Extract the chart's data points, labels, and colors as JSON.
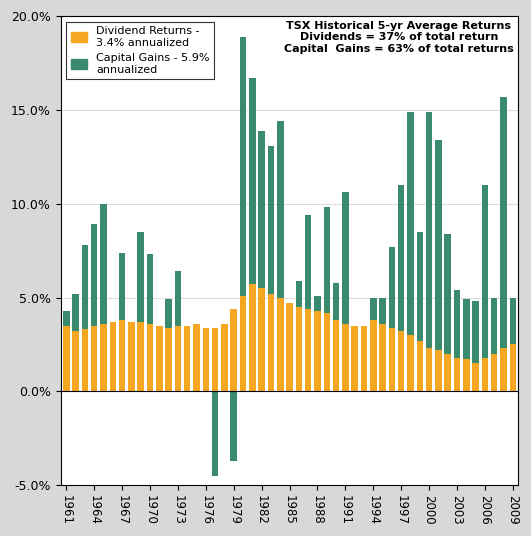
{
  "title": "TSX Historical 5-yr Average Returns\nDividends = 37% of total return\nCapital  Gains = 63% of total returns",
  "legend_dividend": "Dividend Returns -\n3.4% annualized",
  "legend_capital": "Capital Gains - 5.9%\nannualized",
  "years": [
    1961,
    1962,
    1963,
    1964,
    1965,
    1966,
    1967,
    1968,
    1969,
    1970,
    1971,
    1972,
    1973,
    1974,
    1975,
    1976,
    1977,
    1978,
    1979,
    1980,
    1981,
    1982,
    1983,
    1984,
    1985,
    1986,
    1987,
    1988,
    1989,
    1990,
    1991,
    1992,
    1993,
    1994,
    1995,
    1996,
    1997,
    1998,
    1999,
    2000,
    2001,
    2002,
    2003,
    2004,
    2005,
    2006,
    2007,
    2008,
    2009
  ],
  "dividend_returns": [
    3.5,
    3.2,
    3.3,
    3.5,
    3.6,
    3.7,
    3.8,
    3.7,
    3.7,
    3.6,
    3.5,
    3.4,
    3.5,
    3.5,
    3.6,
    3.4,
    3.4,
    3.6,
    4.4,
    5.1,
    5.7,
    5.5,
    5.2,
    5.0,
    4.7,
    4.5,
    4.4,
    4.3,
    4.2,
    3.8,
    3.6,
    3.5,
    3.5,
    3.8,
    3.6,
    3.4,
    3.2,
    3.0,
    2.7,
    2.3,
    2.2,
    2.0,
    1.8,
    1.7,
    1.5,
    1.8,
    2.0,
    2.3,
    2.5
  ],
  "capital_gains": [
    4.3,
    5.2,
    7.8,
    8.9,
    10.0,
    2.6,
    7.4,
    2.5,
    8.5,
    7.3,
    2.3,
    4.9,
    6.4,
    1.5,
    2.2,
    0.1,
    -4.5,
    2.0,
    -3.7,
    18.9,
    16.7,
    13.9,
    13.1,
    14.4,
    4.6,
    5.9,
    9.4,
    5.1,
    9.8,
    5.8,
    10.6,
    1.1,
    1.3,
    5.0,
    5.0,
    7.7,
    11.0,
    14.9,
    8.5,
    14.9,
    13.4,
    8.4,
    5.4,
    4.9,
    4.8,
    11.0,
    5.0,
    15.7,
    5.0
  ],
  "dividend_color": "#F5A623",
  "capital_color": "#3A8B6E",
  "ylim_min": -5.0,
  "ylim_max": 20.0,
  "background_color": "#FFFFFF",
  "plot_background": "#FFFFFF",
  "outer_bg": "#D8D8D8"
}
